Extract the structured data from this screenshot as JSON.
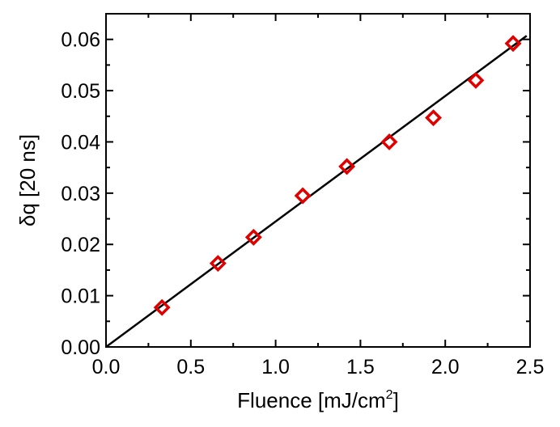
{
  "chart_data": {
    "type": "scatter",
    "xlabel": "Fluence [mJ/cm",
    "xlabel_sup": "2",
    "xlabel_end": "]",
    "ylabel": "δq [20 ns]",
    "xlim": [
      0.0,
      2.5
    ],
    "ylim": [
      0.0,
      0.065
    ],
    "x_ticks": [
      "0.0",
      "0.5",
      "1.0",
      "1.5",
      "2.0",
      "2.5"
    ],
    "y_ticks": [
      "0.00",
      "0.01",
      "0.02",
      "0.03",
      "0.04",
      "0.05",
      "0.06"
    ],
    "grid": false,
    "series": [
      {
        "kind": "points",
        "marker": "open-diamond",
        "color": "#e00000",
        "x": [
          0.33,
          0.66,
          0.87,
          1.16,
          1.42,
          1.67,
          1.93,
          2.18,
          2.4
        ],
        "y": [
          0.0077,
          0.0163,
          0.0214,
          0.0295,
          0.0352,
          0.04,
          0.0447,
          0.052,
          0.0592
        ]
      },
      {
        "kind": "fit-line",
        "color": "#000000",
        "x": [
          0.0,
          2.48
        ],
        "y": [
          0.0,
          0.0607
        ]
      }
    ]
  }
}
